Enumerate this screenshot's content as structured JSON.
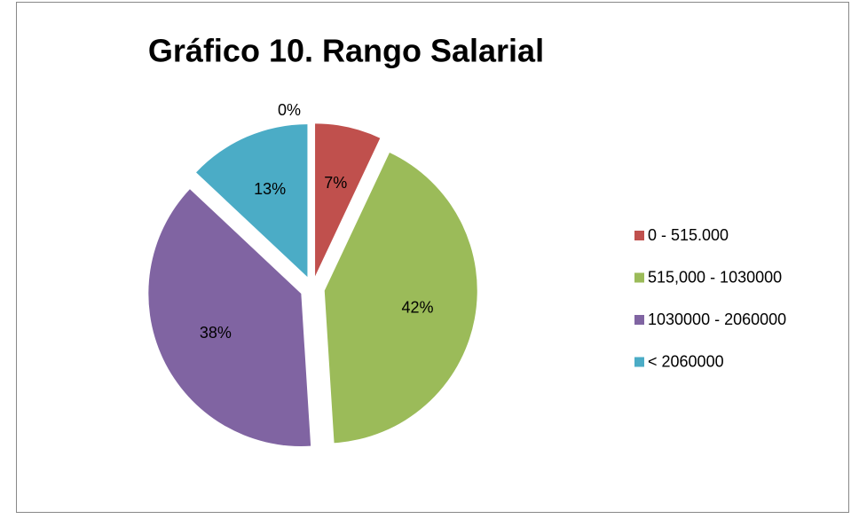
{
  "chart_data": {
    "type": "pie",
    "title": "Gráfico 10. Rango Salarial",
    "categories": [
      null,
      "0 - 515.000",
      "515,000 - 1030000",
      "1030000 - 2060000",
      "< 2060000"
    ],
    "values": [
      0,
      7,
      42,
      38,
      13
    ],
    "value_labels": [
      "0%",
      "7%",
      "42%",
      "38%",
      "13%"
    ],
    "colors": [
      null,
      "#c0504d",
      "#9bbb59",
      "#8064a2",
      "#4bacc6"
    ],
    "legend": "right"
  }
}
